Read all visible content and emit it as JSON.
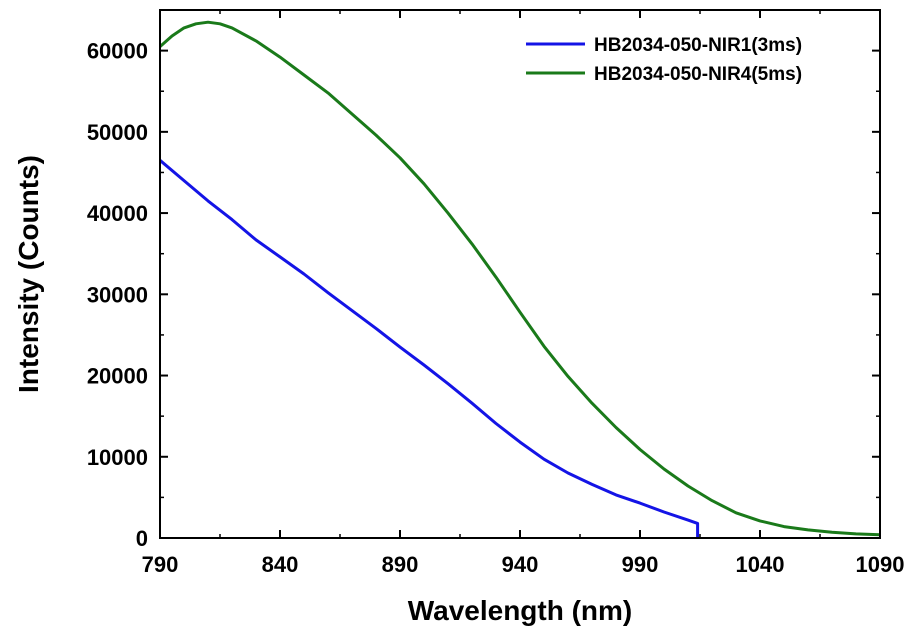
{
  "chart_data": {
    "type": "line",
    "title": "",
    "xlabel": "Wavelength (nm)",
    "ylabel": "Intensity (Counts)",
    "xlim": [
      790,
      1090
    ],
    "ylim": [
      0,
      65000
    ],
    "xticks": [
      790,
      840,
      890,
      940,
      990,
      1040,
      1090
    ],
    "xtick_labels": [
      "790",
      "840",
      "890",
      "940",
      "990",
      "1040",
      "1090"
    ],
    "yticks": [
      0,
      10000,
      20000,
      30000,
      40000,
      50000,
      60000
    ],
    "ytick_labels": [
      "0",
      "10000",
      "20000",
      "30000",
      "40000",
      "50000",
      "60000"
    ],
    "grid": false,
    "legend_position": "top-right",
    "series": [
      {
        "name": "HB2034-050-NIR1(3ms)",
        "color": "#1414e6",
        "x": [
          790,
          800,
          810,
          820,
          830,
          840,
          850,
          860,
          870,
          880,
          890,
          900,
          910,
          920,
          930,
          940,
          950,
          960,
          970,
          980,
          990,
          1000,
          1010,
          1014,
          1014
        ],
        "y": [
          46500,
          44000,
          41500,
          39200,
          36700,
          34600,
          32500,
          30200,
          28000,
          25800,
          23500,
          21300,
          19000,
          16600,
          14100,
          11800,
          9700,
          8000,
          6600,
          5300,
          4300,
          3200,
          2200,
          1800,
          0
        ]
      },
      {
        "name": "HB2034-050-NIR4(5ms)",
        "color": "#1a7a1a",
        "x": [
          790,
          795,
          800,
          805,
          810,
          815,
          820,
          830,
          840,
          850,
          860,
          870,
          880,
          890,
          900,
          910,
          920,
          930,
          940,
          950,
          960,
          970,
          980,
          990,
          1000,
          1010,
          1020,
          1030,
          1040,
          1050,
          1060,
          1070,
          1080,
          1090
        ],
        "y": [
          60500,
          61800,
          62800,
          63300,
          63500,
          63300,
          62800,
          61200,
          59200,
          57000,
          54800,
          52200,
          49600,
          46800,
          43600,
          40000,
          36200,
          32100,
          27800,
          23600,
          19900,
          16600,
          13600,
          10900,
          8500,
          6400,
          4600,
          3100,
          2100,
          1400,
          1000,
          700,
          500,
          400
        ]
      }
    ]
  }
}
